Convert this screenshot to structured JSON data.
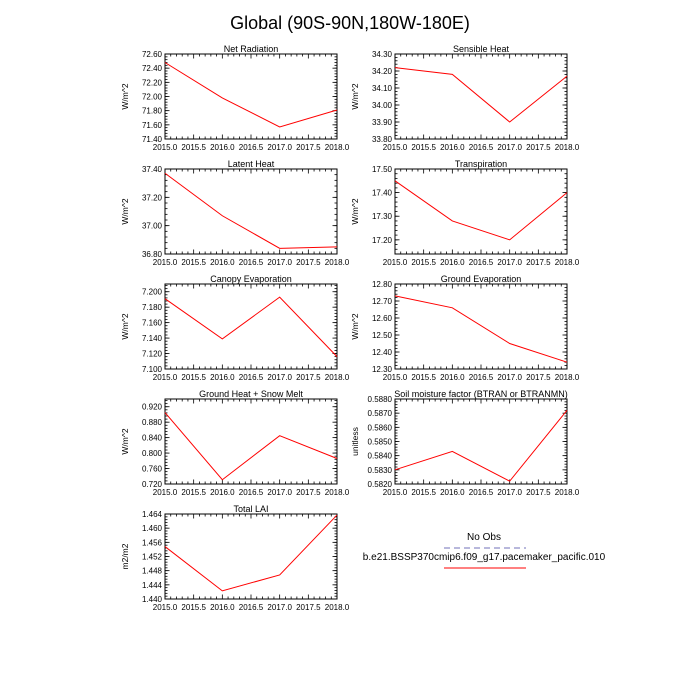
{
  "title": "Global (90S-90N,180W-180E)",
  "colors": {
    "series": "#ff0000",
    "obs": "#a0a0d0",
    "axis": "#000000"
  },
  "chart_data": [
    {
      "type": "line",
      "title": "Net Radiation",
      "ylabel": "W/m^2",
      "x": [
        2015.0,
        2016.0,
        2017.0,
        2018.0
      ],
      "y": [
        72.48,
        71.98,
        71.57,
        71.81
      ],
      "xlim": [
        2015.0,
        2018.0
      ],
      "ylim": [
        71.4,
        72.6
      ],
      "xticks": [
        "2015.0",
        "2015.5",
        "2016.0",
        "2016.5",
        "2017.0",
        "2017.5",
        "2018.0"
      ],
      "yticks": [
        "71.40",
        "71.60",
        "71.80",
        "72.00",
        "72.20",
        "72.40",
        "72.60"
      ]
    },
    {
      "type": "line",
      "title": "Sensible Heat",
      "ylabel": "W/m^2",
      "x": [
        2015.0,
        2016.0,
        2017.0,
        2018.0
      ],
      "y": [
        34.22,
        34.18,
        33.9,
        34.17
      ],
      "xlim": [
        2015.0,
        2018.0
      ],
      "ylim": [
        33.8,
        34.3
      ],
      "xticks": [
        "2015.0",
        "2015.5",
        "2016.0",
        "2016.5",
        "2017.0",
        "2017.5",
        "2018.0"
      ],
      "yticks": [
        "33.80",
        "33.90",
        "34.00",
        "34.10",
        "34.20",
        "34.30"
      ]
    },
    {
      "type": "line",
      "title": "Latent Heat",
      "ylabel": "W/m^2",
      "x": [
        2015.0,
        2016.0,
        2017.0,
        2018.0
      ],
      "y": [
        37.37,
        37.07,
        36.84,
        36.85
      ],
      "xlim": [
        2015.0,
        2018.0
      ],
      "ylim": [
        36.8,
        37.4
      ],
      "xticks": [
        "2015.0",
        "2015.5",
        "2016.0",
        "2016.5",
        "2017.0",
        "2017.5",
        "2018.0"
      ],
      "yticks": [
        "36.80",
        "37.00",
        "37.20",
        "37.40"
      ]
    },
    {
      "type": "line",
      "title": "Transpiration",
      "ylabel": "W/m^2",
      "x": [
        2015.0,
        2016.0,
        2017.0,
        2018.0
      ],
      "y": [
        17.45,
        17.28,
        17.2,
        17.4
      ],
      "xlim": [
        2015.0,
        2018.0
      ],
      "ylim": [
        17.14,
        17.5
      ],
      "xticks": [
        "2015.0",
        "2015.5",
        "2016.0",
        "2016.5",
        "2017.0",
        "2017.5",
        "2018.0"
      ],
      "yticks": [
        "17.20",
        "17.30",
        "17.40",
        "17.50"
      ]
    },
    {
      "type": "line",
      "title": "Canopy Evaporation",
      "ylabel": "W/m^2",
      "x": [
        2015.0,
        2016.0,
        2017.0,
        2018.0
      ],
      "y": [
        7.191,
        7.139,
        7.193,
        7.116
      ],
      "xlim": [
        2015.0,
        2018.0
      ],
      "ylim": [
        7.1,
        7.21
      ],
      "xticks": [
        "2015.0",
        "2015.5",
        "2016.0",
        "2016.5",
        "2017.0",
        "2017.5",
        "2018.0"
      ],
      "yticks": [
        "7.100",
        "7.120",
        "7.140",
        "7.160",
        "7.180",
        "7.200"
      ]
    },
    {
      "type": "line",
      "title": "Ground Evaporation",
      "ylabel": "W/m^2",
      "x": [
        2015.0,
        2016.0,
        2017.0,
        2018.0
      ],
      "y": [
        12.73,
        12.66,
        12.45,
        12.34
      ],
      "xlim": [
        2015.0,
        2018.0
      ],
      "ylim": [
        12.3,
        12.8
      ],
      "xticks": [
        "2015.0",
        "2015.5",
        "2016.0",
        "2016.5",
        "2017.0",
        "2017.5",
        "2018.0"
      ],
      "yticks": [
        "12.30",
        "12.40",
        "12.50",
        "12.60",
        "12.70",
        "12.80"
      ]
    },
    {
      "type": "line",
      "title": "Ground Heat + Snow Melt",
      "ylabel": "W/m^2",
      "x": [
        2015.0,
        2016.0,
        2017.0,
        2018.0
      ],
      "y": [
        0.905,
        0.731,
        0.845,
        0.786
      ],
      "xlim": [
        2015.0,
        2018.0
      ],
      "ylim": [
        0.72,
        0.94
      ],
      "xticks": [
        "2015.0",
        "2015.5",
        "2016.0",
        "2016.5",
        "2017.0",
        "2017.5",
        "2018.0"
      ],
      "yticks": [
        "0.720",
        "0.760",
        "0.800",
        "0.840",
        "0.880",
        "0.920"
      ]
    },
    {
      "type": "line",
      "title": "Soil moisture factor (BTRAN or BTRANMN)",
      "ylabel": "unitless",
      "x": [
        2015.0,
        2016.0,
        2017.0,
        2018.0
      ],
      "y": [
        0.583,
        0.5843,
        0.5822,
        0.5872
      ],
      "xlim": [
        2015.0,
        2018.0
      ],
      "ylim": [
        0.582,
        0.588
      ],
      "xticks": [
        "2015.0",
        "2015.5",
        "2016.0",
        "2016.5",
        "2017.0",
        "2017.5",
        "2018.0"
      ],
      "yticks": [
        "0.5820",
        "0.5830",
        "0.5840",
        "0.5850",
        "0.5860",
        "0.5870",
        "0.5880"
      ]
    },
    {
      "type": "line",
      "title": "Total LAI",
      "ylabel": "m2/m2",
      "x": [
        2015.0,
        2016.0,
        2017.0,
        2018.0
      ],
      "y": [
        1.4548,
        1.4423,
        1.4468,
        1.4637
      ],
      "xlim": [
        2015.0,
        2018.0
      ],
      "ylim": [
        1.44,
        1.464
      ],
      "xticks": [
        "2015.0",
        "2015.5",
        "2016.0",
        "2016.5",
        "2017.0",
        "2017.5",
        "2018.0"
      ],
      "yticks": [
        "1.440",
        "1.444",
        "1.448",
        "1.452",
        "1.456",
        "1.460",
        "1.464"
      ]
    }
  ],
  "legend": [
    {
      "label": "No Obs",
      "style": "dashed",
      "color": "#a0a0d0"
    },
    {
      "label": "b.e21.BSSP370cmip6.f09_g17.pacemaker_pacific.010",
      "style": "solid",
      "color": "#ff0000"
    }
  ]
}
